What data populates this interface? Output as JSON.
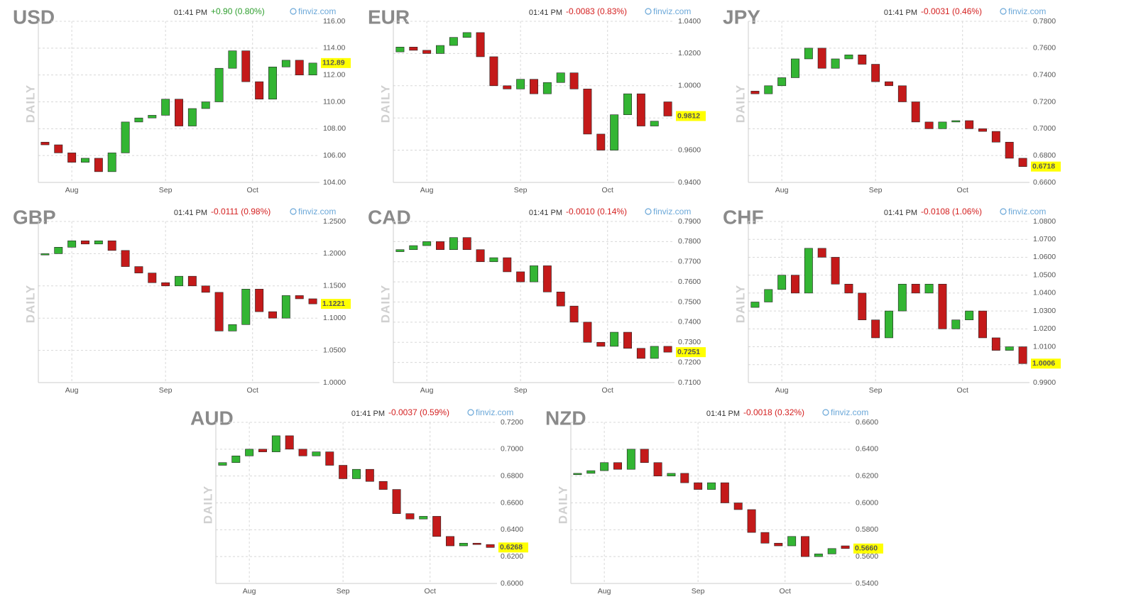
{
  "chart_data": [
    {
      "type": "candlestick",
      "title": "USD",
      "time": "01:41 PM",
      "change": "+0.90 (0.80%)",
      "change_color": "#2e9e2e",
      "source": "finviz.com",
      "side_label": "DAILY",
      "last": 112.89,
      "up_color": "#33b533",
      "down_color": "#c41a1a",
      "grid": true,
      "ylim": [
        104,
        116
      ],
      "yticks": [
        {
          "value": 104,
          "label": "104.00"
        },
        {
          "value": 106,
          "label": "106.00"
        },
        {
          "value": 108,
          "label": "108.00"
        },
        {
          "value": 110,
          "label": "110.00"
        },
        {
          "value": 112,
          "label": "112.00"
        },
        {
          "value": 114,
          "label": "114.00"
        },
        {
          "value": 116,
          "label": "116.00"
        }
      ],
      "xlim": [
        0,
        21
      ],
      "xticks": [
        {
          "value": 2.5,
          "label": "Aug"
        },
        {
          "value": 9.5,
          "label": "Sep"
        },
        {
          "value": 16,
          "label": "Oct"
        }
      ],
      "open": [
        107.0,
        106.8,
        106.2,
        105.5,
        105.8,
        104.8,
        106.2,
        108.5,
        108.8,
        109.0,
        110.2,
        108.2,
        109.5,
        110.0,
        112.5,
        113.8,
        111.5,
        110.2,
        112.6,
        113.1,
        112.0
      ],
      "close": [
        106.8,
        106.2,
        105.5,
        105.8,
        104.8,
        106.2,
        108.5,
        108.8,
        109.0,
        110.2,
        108.2,
        109.5,
        110.0,
        112.5,
        113.8,
        111.5,
        110.2,
        112.6,
        113.1,
        112.0,
        112.89
      ]
    },
    {
      "type": "candlestick",
      "title": "EUR",
      "time": "01:41 PM",
      "change": "-0.0083 (0.83%)",
      "change_color": "#d42020",
      "source": "finviz.com",
      "side_label": "DAILY",
      "last": 0.9812,
      "up_color": "#33b533",
      "down_color": "#c41a1a",
      "grid": true,
      "ylim": [
        0.94,
        1.04
      ],
      "yticks": [
        {
          "value": 0.94,
          "label": "0.9400"
        },
        {
          "value": 0.96,
          "label": "0.9600"
        },
        {
          "value": 0.98,
          "label": "0.9800"
        },
        {
          "value": 1.0,
          "label": "1.0000"
        },
        {
          "value": 1.02,
          "label": "1.0200"
        },
        {
          "value": 1.04,
          "label": "1.0400"
        }
      ],
      "xlim": [
        0,
        21
      ],
      "xticks": [
        {
          "value": 2.5,
          "label": "Aug"
        },
        {
          "value": 9.5,
          "label": "Sep"
        },
        {
          "value": 16,
          "label": "Oct"
        }
      ],
      "open": [
        1.021,
        1.024,
        1.022,
        1.02,
        1.025,
        1.03,
        1.033,
        1.018,
        1.0,
        0.998,
        1.004,
        0.995,
        1.002,
        1.008,
        0.998,
        0.97,
        0.96,
        0.982,
        0.995,
        0.975,
        0.99
      ],
      "close": [
        1.024,
        1.022,
        1.02,
        1.025,
        1.03,
        1.033,
        1.018,
        1.0,
        0.998,
        1.004,
        0.995,
        1.002,
        1.008,
        0.998,
        0.97,
        0.96,
        0.982,
        0.995,
        0.975,
        0.978,
        0.9812
      ]
    },
    {
      "type": "candlestick",
      "title": "JPY",
      "time": "01:41 PM",
      "change": "-0.0031 (0.46%)",
      "change_color": "#d42020",
      "source": "finviz.com",
      "side_label": "DAILY",
      "last": 0.6718,
      "up_color": "#33b533",
      "down_color": "#c41a1a",
      "grid": true,
      "ylim": [
        0.66,
        0.78
      ],
      "yticks": [
        {
          "value": 0.66,
          "label": "0.6600"
        },
        {
          "value": 0.68,
          "label": "0.6800"
        },
        {
          "value": 0.7,
          "label": "0.7000"
        },
        {
          "value": 0.72,
          "label": "0.7200"
        },
        {
          "value": 0.74,
          "label": "0.7400"
        },
        {
          "value": 0.76,
          "label": "0.7600"
        },
        {
          "value": 0.78,
          "label": "0.7800"
        }
      ],
      "xlim": [
        0,
        21
      ],
      "xticks": [
        {
          "value": 2.5,
          "label": "Aug"
        },
        {
          "value": 9.5,
          "label": "Sep"
        },
        {
          "value": 16,
          "label": "Oct"
        }
      ],
      "open": [
        0.728,
        0.726,
        0.732,
        0.738,
        0.752,
        0.76,
        0.745,
        0.752,
        0.755,
        0.748,
        0.735,
        0.732,
        0.72,
        0.705,
        0.7,
        0.705,
        0.706,
        0.7,
        0.698,
        0.69,
        0.678
      ],
      "close": [
        0.726,
        0.732,
        0.738,
        0.752,
        0.76,
        0.745,
        0.752,
        0.755,
        0.748,
        0.735,
        0.732,
        0.72,
        0.705,
        0.7,
        0.705,
        0.706,
        0.7,
        0.698,
        0.69,
        0.678,
        0.6718
      ]
    },
    {
      "type": "candlestick",
      "title": "GBP",
      "time": "01:41 PM",
      "change": "-0.0111 (0.98%)",
      "change_color": "#d42020",
      "source": "finviz.com",
      "side_label": "DAILY",
      "last": 1.1221,
      "up_color": "#33b533",
      "down_color": "#c41a1a",
      "grid": true,
      "ylim": [
        1.0,
        1.25
      ],
      "yticks": [
        {
          "value": 1.0,
          "label": "1.0000"
        },
        {
          "value": 1.05,
          "label": "1.0500"
        },
        {
          "value": 1.1,
          "label": "1.1000"
        },
        {
          "value": 1.15,
          "label": "1.1500"
        },
        {
          "value": 1.2,
          "label": "1.2000"
        },
        {
          "value": 1.25,
          "label": "1.2500"
        }
      ],
      "xlim": [
        0,
        21
      ],
      "xticks": [
        {
          "value": 2.5,
          "label": "Aug"
        },
        {
          "value": 9.5,
          "label": "Sep"
        },
        {
          "value": 16,
          "label": "Oct"
        }
      ],
      "open": [
        1.198,
        1.2,
        1.21,
        1.22,
        1.215,
        1.22,
        1.205,
        1.18,
        1.17,
        1.155,
        1.15,
        1.165,
        1.15,
        1.14,
        1.08,
        1.09,
        1.145,
        1.11,
        1.1,
        1.135,
        1.13
      ],
      "close": [
        1.2,
        1.21,
        1.22,
        1.215,
        1.22,
        1.205,
        1.18,
        1.17,
        1.155,
        1.15,
        1.165,
        1.15,
        1.14,
        1.08,
        1.09,
        1.145,
        1.11,
        1.1,
        1.135,
        1.13,
        1.1221
      ]
    },
    {
      "type": "candlestick",
      "title": "CAD",
      "time": "01:41 PM",
      "change": "-0.0010 (0.14%)",
      "change_color": "#d42020",
      "source": "finviz.com",
      "side_label": "DAILY",
      "last": 0.7251,
      "up_color": "#33b533",
      "down_color": "#c41a1a",
      "grid": true,
      "ylim": [
        0.71,
        0.79
      ],
      "yticks": [
        {
          "value": 0.71,
          "label": "0.7100"
        },
        {
          "value": 0.72,
          "label": "0.7200"
        },
        {
          "value": 0.73,
          "label": "0.7300"
        },
        {
          "value": 0.74,
          "label": "0.7400"
        },
        {
          "value": 0.75,
          "label": "0.7500"
        },
        {
          "value": 0.76,
          "label": "0.7600"
        },
        {
          "value": 0.77,
          "label": "0.7700"
        },
        {
          "value": 0.78,
          "label": "0.7800"
        },
        {
          "value": 0.79,
          "label": "0.7900"
        }
      ],
      "xlim": [
        0,
        21
      ],
      "xticks": [
        {
          "value": 2.5,
          "label": "Aug"
        },
        {
          "value": 9.5,
          "label": "Sep"
        },
        {
          "value": 16,
          "label": "Oct"
        }
      ],
      "open": [
        0.775,
        0.776,
        0.778,
        0.78,
        0.776,
        0.782,
        0.776,
        0.77,
        0.772,
        0.765,
        0.76,
        0.768,
        0.755,
        0.748,
        0.74,
        0.73,
        0.728,
        0.735,
        0.727,
        0.722,
        0.728
      ],
      "close": [
        0.776,
        0.778,
        0.78,
        0.776,
        0.782,
        0.776,
        0.77,
        0.772,
        0.765,
        0.76,
        0.768,
        0.755,
        0.748,
        0.74,
        0.73,
        0.728,
        0.735,
        0.727,
        0.722,
        0.728,
        0.7251
      ]
    },
    {
      "type": "candlestick",
      "title": "CHF",
      "time": "01:41 PM",
      "change": "-0.0108 (1.06%)",
      "change_color": "#d42020",
      "source": "finviz.com",
      "side_label": "DAILY",
      "last": 1.0006,
      "up_color": "#33b533",
      "down_color": "#c41a1a",
      "grid": true,
      "ylim": [
        0.99,
        1.08
      ],
      "yticks": [
        {
          "value": 0.99,
          "label": "0.9900"
        },
        {
          "value": 1.0,
          "label": "1.0000"
        },
        {
          "value": 1.01,
          "label": "1.0100"
        },
        {
          "value": 1.02,
          "label": "1.0200"
        },
        {
          "value": 1.03,
          "label": "1.0300"
        },
        {
          "value": 1.04,
          "label": "1.0400"
        },
        {
          "value": 1.05,
          "label": "1.0500"
        },
        {
          "value": 1.06,
          "label": "1.0600"
        },
        {
          "value": 1.07,
          "label": "1.0700"
        },
        {
          "value": 1.08,
          "label": "1.0800"
        }
      ],
      "xlim": [
        0,
        21
      ],
      "xticks": [
        {
          "value": 2.5,
          "label": "Aug"
        },
        {
          "value": 9.5,
          "label": "Sep"
        },
        {
          "value": 16,
          "label": "Oct"
        }
      ],
      "open": [
        1.032,
        1.035,
        1.042,
        1.05,
        1.04,
        1.065,
        1.06,
        1.045,
        1.04,
        1.025,
        1.015,
        1.03,
        1.045,
        1.04,
        1.045,
        1.02,
        1.025,
        1.03,
        1.015,
        1.008,
        1.01
      ],
      "close": [
        1.035,
        1.042,
        1.05,
        1.04,
        1.065,
        1.06,
        1.045,
        1.04,
        1.025,
        1.015,
        1.03,
        1.045,
        1.04,
        1.045,
        1.02,
        1.025,
        1.03,
        1.015,
        1.008,
        1.01,
        1.0006
      ]
    },
    {
      "type": "candlestick",
      "title": "AUD",
      "time": "01:41 PM",
      "change": "-0.0037 (0.59%)",
      "change_color": "#d42020",
      "source": "finviz.com",
      "side_label": "DAILY",
      "last": 0.6268,
      "up_color": "#33b533",
      "down_color": "#c41a1a",
      "grid": true,
      "ylim": [
        0.6,
        0.72
      ],
      "yticks": [
        {
          "value": 0.6,
          "label": "0.6000"
        },
        {
          "value": 0.62,
          "label": "0.6200"
        },
        {
          "value": 0.64,
          "label": "0.6400"
        },
        {
          "value": 0.66,
          "label": "0.6600"
        },
        {
          "value": 0.68,
          "label": "0.6800"
        },
        {
          "value": 0.7,
          "label": "0.7000"
        },
        {
          "value": 0.72,
          "label": "0.7200"
        }
      ],
      "xlim": [
        0,
        21
      ],
      "xticks": [
        {
          "value": 2.5,
          "label": "Aug"
        },
        {
          "value": 9.5,
          "label": "Sep"
        },
        {
          "value": 16,
          "label": "Oct"
        }
      ],
      "open": [
        0.688,
        0.69,
        0.695,
        0.7,
        0.698,
        0.71,
        0.7,
        0.695,
        0.698,
        0.688,
        0.678,
        0.685,
        0.676,
        0.67,
        0.652,
        0.648,
        0.65,
        0.635,
        0.628,
        0.63,
        0.629
      ],
      "close": [
        0.69,
        0.695,
        0.7,
        0.698,
        0.71,
        0.7,
        0.695,
        0.698,
        0.688,
        0.678,
        0.685,
        0.676,
        0.67,
        0.652,
        0.648,
        0.65,
        0.635,
        0.628,
        0.63,
        0.629,
        0.6268
      ]
    },
    {
      "type": "candlestick",
      "title": "NZD",
      "time": "01:41 PM",
      "change": "-0.0018 (0.32%)",
      "change_color": "#d42020",
      "source": "finviz.com",
      "side_label": "DAILY",
      "last": {
        "value": 0.566,
        "label": "0.5660"
      },
      "up_color": "#33b533",
      "down_color": "#c41a1a",
      "grid": true,
      "ylim": [
        0.54,
        0.66
      ],
      "yticks": [
        {
          "value": 0.54,
          "label": "0.5400"
        },
        {
          "value": 0.56,
          "label": "0.5600"
        },
        {
          "value": 0.58,
          "label": "0.5800"
        },
        {
          "value": 0.6,
          "label": "0.6000"
        },
        {
          "value": 0.62,
          "label": "0.6200"
        },
        {
          "value": 0.64,
          "label": "0.6400"
        },
        {
          "value": 0.66,
          "label": "0.6600"
        }
      ],
      "xlim": [
        0,
        21
      ],
      "xticks": [
        {
          "value": 2.5,
          "label": "Aug"
        },
        {
          "value": 9.5,
          "label": "Sep"
        },
        {
          "value": 16,
          "label": "Oct"
        }
      ],
      "open": [
        0.621,
        0.622,
        0.624,
        0.63,
        0.625,
        0.64,
        0.63,
        0.62,
        0.622,
        0.615,
        0.61,
        0.615,
        0.6,
        0.595,
        0.578,
        0.57,
        0.568,
        0.575,
        0.56,
        0.562,
        0.568
      ],
      "close": [
        0.622,
        0.624,
        0.63,
        0.625,
        0.64,
        0.63,
        0.62,
        0.622,
        0.615,
        0.61,
        0.615,
        0.6,
        0.595,
        0.578,
        0.57,
        0.568,
        0.575,
        0.56,
        0.562,
        0.566,
        0.566
      ]
    }
  ]
}
